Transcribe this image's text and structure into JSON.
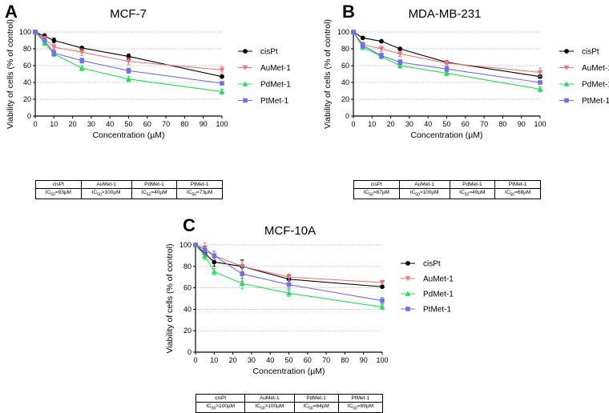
{
  "series_colors": {
    "cisPt": "#000000",
    "AuMet-1": "#f0787a",
    "PdMet-1": "#22dd55",
    "PtMet-1": "#7070ee"
  },
  "chart_data": [
    {
      "panel": "A",
      "type": "line",
      "title": "MCF-7",
      "xlabel": "Concentration (µM)",
      "ylabel": "Viability of cells (% of control)",
      "xlim": [
        0,
        100
      ],
      "ylim": [
        0,
        100
      ],
      "xticks": [
        "0",
        "10",
        "20",
        "30",
        "40",
        "50",
        "60",
        "70",
        "80",
        "90",
        "100"
      ],
      "yticks": [
        "0",
        "20",
        "40",
        "60",
        "80",
        "100"
      ],
      "grid": "horizontal dotted",
      "legend": "right",
      "x": [
        0,
        5,
        10,
        25,
        50,
        100
      ],
      "series": [
        {
          "name": "cisPt",
          "marker": "circle",
          "values": [
            100,
            95,
            90,
            81,
            71,
            47
          ],
          "errors": [
            1,
            3,
            3,
            1,
            3,
            1
          ]
        },
        {
          "name": "AuMet-1",
          "marker": "triangle-down",
          "values": [
            100,
            92,
            82,
            76,
            65,
            55
          ],
          "errors": [
            1,
            3,
            3,
            4,
            4,
            4
          ]
        },
        {
          "name": "PdMet-1",
          "marker": "triangle-up",
          "values": [
            100,
            87,
            74,
            57,
            44,
            29
          ],
          "errors": [
            1,
            3,
            3,
            3,
            3,
            3
          ]
        },
        {
          "name": "PtMet-1",
          "marker": "square",
          "values": [
            100,
            90,
            75,
            66,
            54,
            39
          ],
          "errors": [
            1,
            2,
            3,
            3,
            3,
            2
          ]
        }
      ],
      "table": {
        "headers": [
          "cisPt",
          "AuMet-1",
          "PdMet-1",
          "PtMet-1"
        ],
        "values": [
          "IC50=93µM",
          "IC50>100µM",
          "IC50=40µM",
          "IC50=73µM"
        ]
      }
    },
    {
      "panel": "B",
      "type": "line",
      "title": "MDA-MB-231",
      "xlabel": "Concentration (µM)",
      "ylabel": "Viability of cells (% of control)",
      "xlim": [
        0,
        100
      ],
      "ylim": [
        0,
        100
      ],
      "xticks": [
        "0",
        "10",
        "20",
        "30",
        "40",
        "50",
        "60",
        "70",
        "80",
        "90",
        "100"
      ],
      "yticks": [
        "0",
        "20",
        "40",
        "60",
        "80",
        "100"
      ],
      "grid": "horizontal dotted",
      "legend": "right",
      "x": [
        0,
        5,
        15,
        25,
        50,
        100
      ],
      "series": [
        {
          "name": "cisPt",
          "marker": "circle",
          "values": [
            100,
            93,
            89,
            80,
            64,
            47
          ],
          "errors": [
            1,
            1,
            1,
            1,
            1,
            2
          ]
        },
        {
          "name": "AuMet-1",
          "marker": "triangle-down",
          "values": [
            100,
            85,
            80,
            74,
            63,
            52
          ],
          "errors": [
            1,
            3,
            3,
            3,
            3,
            5
          ]
        },
        {
          "name": "PdMet-1",
          "marker": "triangle-up",
          "values": [
            100,
            82,
            71,
            60,
            51,
            32
          ],
          "errors": [
            1,
            3,
            3,
            3,
            3,
            3
          ]
        },
        {
          "name": "PtMet-1",
          "marker": "square",
          "values": [
            100,
            84,
            72,
            64,
            56,
            40
          ],
          "errors": [
            1,
            3,
            3,
            3,
            3,
            2
          ]
        }
      ],
      "table": {
        "headers": [
          "cisPt",
          "AuMet-1",
          "PdMet-1",
          "PtMet-1"
        ],
        "values": [
          "IC50=87µM",
          "IC50>100µM",
          "IC50=49µM",
          "IC50=68µM"
        ]
      }
    },
    {
      "panel": "C",
      "type": "line",
      "title": "MCF-10A",
      "xlabel": "Concentration (µM)",
      "ylabel": "Viability of cells (% of control)",
      "xlim": [
        0,
        100
      ],
      "ylim": [
        0,
        100
      ],
      "xticks": [
        "0",
        "10",
        "20",
        "30",
        "40",
        "50",
        "60",
        "70",
        "80",
        "90",
        "100"
      ],
      "yticks": [
        "0",
        "20",
        "40",
        "60",
        "80",
        "100"
      ],
      "grid": "horizontal dotted",
      "legend": "right",
      "x": [
        0,
        5,
        10,
        25,
        50,
        100
      ],
      "series": [
        {
          "name": "cisPt",
          "marker": "circle",
          "values": [
            100,
            92,
            84,
            80,
            68,
            61
          ],
          "errors": [
            1,
            4,
            4,
            6,
            4,
            1
          ]
        },
        {
          "name": "AuMet-1",
          "marker": "triangle-down",
          "values": [
            100,
            97,
            90,
            80,
            70,
            65
          ],
          "errors": [
            1,
            5,
            4,
            5,
            3,
            2
          ]
        },
        {
          "name": "PdMet-1",
          "marker": "triangle-up",
          "values": [
            100,
            90,
            75,
            64,
            55,
            42
          ],
          "errors": [
            1,
            4,
            3,
            5,
            3,
            2
          ]
        },
        {
          "name": "PtMet-1",
          "marker": "square",
          "values": [
            100,
            95,
            90,
            73,
            63,
            48
          ],
          "errors": [
            1,
            4,
            4,
            7,
            4,
            3
          ]
        }
      ],
      "table": {
        "headers": [
          "cisPt",
          "AuMet-1",
          "PdMet-1",
          "PtMet-1"
        ],
        "values": [
          "IC50>100µM",
          "IC50>100µM",
          "IC50=64µM",
          "IC50=89µM"
        ]
      }
    }
  ]
}
